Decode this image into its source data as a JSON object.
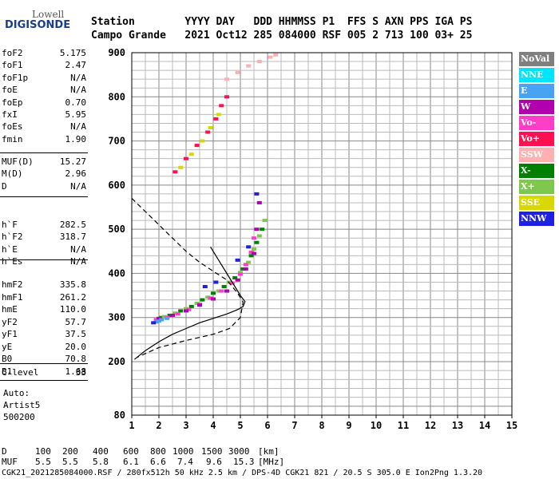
{
  "logo": {
    "top": "Lowell",
    "bottom": "DIGISONDE"
  },
  "header": {
    "line1": "Station        YYYY DAY   DDD HHMMSS P1  FFS S AXN PPS IGA PS",
    "line2": "Campo Grande   2021 Oct12 285 084000 RSF 005 2 713 100 03+ 25"
  },
  "params_group1": [
    {
      "label": "foF2",
      "value": "5.175"
    },
    {
      "label": "foF1",
      "value": "2.47"
    },
    {
      "label": "foF1p",
      "value": "N/A"
    },
    {
      "label": "foE",
      "value": "N/A"
    },
    {
      "label": "foEp",
      "value": "0.70"
    },
    {
      "label": "fxI",
      "value": "5.95"
    },
    {
      "label": "foEs",
      "value": "N/A"
    },
    {
      "label": "fmin",
      "value": "1.90"
    }
  ],
  "params_group2": [
    {
      "label": "MUF(D)",
      "value": "15.27"
    },
    {
      "label": "M(D)",
      "value": "2.96"
    },
    {
      "label": "D",
      "value": "N/A"
    }
  ],
  "params_group3": [
    {
      "label": "h`F",
      "value": "282.5"
    },
    {
      "label": "h`F2",
      "value": "318.7"
    },
    {
      "label": "h`E",
      "value": "N/A"
    },
    {
      "label": "h`Es",
      "value": "N/A"
    }
  ],
  "params_group4": [
    {
      "label": "hmF2",
      "value": "335.8"
    },
    {
      "label": "hmF1",
      "value": "261.2"
    },
    {
      "label": "hmE",
      "value": "110.0"
    },
    {
      "label": "yF2",
      "value": "57.7"
    },
    {
      "label": "yF1",
      "value": "37.5"
    },
    {
      "label": "yE",
      "value": "20.0"
    },
    {
      "label": "B0",
      "value": "70.8"
    },
    {
      "label": "B1",
      "value": "1.68"
    }
  ],
  "params_group5": [
    {
      "label": "C-level",
      "value": "33"
    }
  ],
  "scaler": {
    "line1": "Auto:",
    "line2": "Artist5",
    "line3": "500200"
  },
  "legend": [
    {
      "label": "NoVal",
      "color": "#808080"
    },
    {
      "label": "NNE",
      "color": "#00e5ff"
    },
    {
      "label": "E",
      "color": "#4aa3f0"
    },
    {
      "label": "W",
      "color": "#b000b0"
    },
    {
      "label": "Vo-",
      "color": "#ff3ec8"
    },
    {
      "label": "Vo+",
      "color": "#ff1050"
    },
    {
      "label": "SSW",
      "color": "#ffb0b0"
    },
    {
      "label": "X-",
      "color": "#008000"
    },
    {
      "label": "X+",
      "color": "#7ec850"
    },
    {
      "label": "SSE",
      "color": "#d8d800"
    },
    {
      "label": "NNW",
      "color": "#2020e0"
    }
  ],
  "footer": {
    "d_label": "D",
    "d_values": [
      "100",
      "200",
      "400",
      "600",
      "800",
      "1000",
      "1500",
      "3000"
    ],
    "d_unit": "[km]",
    "muf_label": "MUF",
    "muf_values": [
      "5.5",
      "5.5",
      "5.8",
      "6.1",
      "6.6",
      "7.4",
      "9.6",
      "15.3"
    ],
    "muf_unit": "[MHz]",
    "file_line": "CGK21_2021285084000.RSF / 280fx512h 50 kHz 2.5 km / DPS-4D CGK21 821 / 20.5 S 305.0 E Ion2Png 1.3.20"
  },
  "chart_data": {
    "type": "scatter",
    "title": "",
    "xlabel": "",
    "ylabel": "",
    "xlim": [
      1,
      15
    ],
    "ylim": [
      80,
      900
    ],
    "x_ticks": [
      1,
      2,
      3,
      4,
      5,
      6,
      7,
      8,
      9,
      10,
      11,
      12,
      13,
      14,
      15
    ],
    "y_ticks": [
      80,
      200,
      300,
      400,
      500,
      600,
      700,
      800,
      900
    ],
    "grid": true,
    "legend_position": "right",
    "series": [
      {
        "color_key": "X-",
        "points": [
          [
            2.1,
            300
          ],
          [
            2.4,
            305
          ],
          [
            2.8,
            315
          ],
          [
            3.2,
            325
          ],
          [
            3.6,
            340
          ],
          [
            4.0,
            355
          ],
          [
            4.4,
            370
          ],
          [
            4.8,
            390
          ],
          [
            5.1,
            410
          ],
          [
            5.4,
            440
          ],
          [
            5.6,
            470
          ],
          [
            5.8,
            500
          ]
        ]
      },
      {
        "color_key": "X+",
        "points": [
          [
            2.2,
            302
          ],
          [
            2.6,
            310
          ],
          [
            3.0,
            320
          ],
          [
            3.4,
            332
          ],
          [
            3.8,
            346
          ],
          [
            4.2,
            360
          ],
          [
            4.6,
            380
          ],
          [
            5.0,
            402
          ],
          [
            5.3,
            425
          ],
          [
            5.5,
            455
          ],
          [
            5.7,
            485
          ],
          [
            5.9,
            520
          ]
        ]
      },
      {
        "color_key": "Vo-",
        "points": [
          [
            1.9,
            295
          ],
          [
            2.3,
            300
          ],
          [
            2.7,
            308
          ],
          [
            3.1,
            318
          ],
          [
            3.5,
            330
          ],
          [
            3.9,
            344
          ],
          [
            4.3,
            360
          ],
          [
            4.7,
            378
          ],
          [
            5.0,
            398
          ],
          [
            5.2,
            420
          ],
          [
            5.4,
            448
          ],
          [
            5.5,
            480
          ]
        ]
      },
      {
        "color_key": "W",
        "points": [
          [
            2.0,
            298
          ],
          [
            2.5,
            305
          ],
          [
            3.0,
            315
          ],
          [
            3.5,
            328
          ],
          [
            4.0,
            342
          ],
          [
            4.5,
            360
          ],
          [
            4.9,
            385
          ],
          [
            5.2,
            410
          ],
          [
            5.5,
            445
          ],
          [
            5.6,
            500
          ],
          [
            5.7,
            560
          ]
        ]
      },
      {
        "color_key": "E",
        "points": [
          [
            1.9,
            290
          ],
          [
            2.0,
            292
          ],
          [
            2.1,
            295
          ],
          [
            2.3,
            298
          ]
        ]
      },
      {
        "color_key": "NNW",
        "points": [
          [
            1.8,
            288
          ],
          [
            3.7,
            370
          ],
          [
            4.1,
            380
          ],
          [
            4.9,
            430
          ],
          [
            5.3,
            460
          ],
          [
            5.6,
            580
          ]
        ]
      },
      {
        "color_key": "Vo+",
        "points": [
          [
            2.6,
            630
          ],
          [
            3.0,
            660
          ],
          [
            3.4,
            690
          ],
          [
            3.8,
            720
          ],
          [
            4.1,
            750
          ],
          [
            4.3,
            780
          ],
          [
            4.5,
            800
          ]
        ]
      },
      {
        "color_key": "SSE",
        "points": [
          [
            2.8,
            640
          ],
          [
            3.2,
            670
          ],
          [
            3.6,
            700
          ],
          [
            3.9,
            730
          ],
          [
            4.2,
            760
          ]
        ]
      },
      {
        "color_key": "SSW",
        "points": [
          [
            4.5,
            840
          ],
          [
            4.9,
            855
          ],
          [
            5.3,
            870
          ],
          [
            5.7,
            880
          ],
          [
            6.1,
            890
          ],
          [
            6.3,
            895
          ]
        ]
      }
    ],
    "profile_solid": [
      [
        1.1,
        205
      ],
      [
        1.5,
        225
      ],
      [
        2.0,
        245
      ],
      [
        2.5,
        262
      ],
      [
        3.0,
        275
      ],
      [
        3.5,
        288
      ],
      [
        4.0,
        298
      ],
      [
        4.5,
        308
      ],
      [
        4.9,
        318
      ],
      [
        5.1,
        325
      ],
      [
        5.17,
        336
      ],
      [
        5.0,
        350
      ],
      [
        4.7,
        380
      ],
      [
        4.3,
        420
      ],
      [
        3.9,
        460
      ]
    ],
    "profile_dashed": [
      [
        1.0,
        570
      ],
      [
        1.5,
        540
      ],
      [
        2.0,
        510
      ],
      [
        2.5,
        480
      ],
      [
        3.0,
        450
      ],
      [
        3.5,
        425
      ],
      [
        4.0,
        405
      ],
      [
        4.5,
        385
      ],
      [
        4.9,
        355
      ],
      [
        5.1,
        335
      ],
      [
        5.0,
        300
      ],
      [
        4.6,
        275
      ],
      [
        4.0,
        262
      ],
      [
        3.0,
        248
      ],
      [
        2.0,
        232
      ],
      [
        1.2,
        210
      ]
    ]
  }
}
